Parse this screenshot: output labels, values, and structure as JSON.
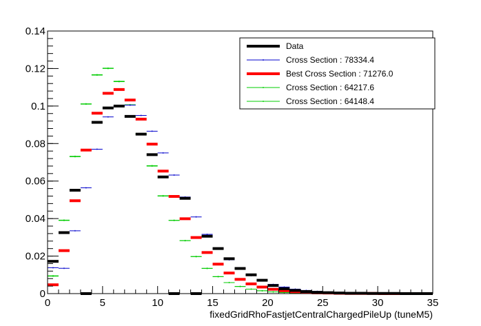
{
  "chart_data": {
    "type": "line",
    "style": "histogram-step",
    "title": "",
    "xlabel": "fixedGridRhoFastjetCentralChargedPileUp (tuneM5)",
    "ylabel": "",
    "xlim": [
      0,
      35
    ],
    "ylim": [
      0,
      0.14
    ],
    "x_ticks": [
      0,
      5,
      10,
      15,
      20,
      25,
      30,
      35
    ],
    "y_ticks": [
      0,
      0.02,
      0.04,
      0.06,
      0.08,
      0.1,
      0.12,
      0.14
    ],
    "x_tick_labels": [
      "0",
      "5",
      "10",
      "15",
      "20",
      "25",
      "30",
      "35"
    ],
    "y_tick_labels": [
      "0",
      "0.02",
      "0.04",
      "0.06",
      "0.08",
      "0.1",
      "0.12",
      "0.14"
    ],
    "grid": false,
    "legend_position": "top-right",
    "bin_width": 1,
    "series": [
      {
        "name": "Data",
        "color": "#000000",
        "line_width": 4,
        "x": [
          0,
          1,
          2,
          3,
          4,
          5,
          6,
          7,
          8,
          9,
          10,
          11,
          12,
          13,
          14,
          15,
          16,
          17,
          18,
          19,
          20,
          21,
          22,
          23,
          24,
          25,
          26,
          27,
          28,
          29,
          30,
          31,
          32,
          33,
          34
        ],
        "values": [
          0.0172,
          0.0325,
          0.0551,
          0,
          0.0913,
          0.099,
          0.1,
          0.0945,
          0.085,
          0.0741,
          0.0622,
          0,
          0.0508,
          0,
          0.0306,
          0.024,
          0.0186,
          0.0134,
          0.01,
          0.0071,
          0.0043,
          0.0026,
          0.0017,
          0.0011,
          0.0007,
          0.0005,
          0.0003,
          0.0002,
          0.0002,
          0.0001,
          0.0001,
          0.0001,
          0,
          0,
          0
        ]
      },
      {
        "name": "Cross Section : 78334.4",
        "color": "#0000cc",
        "line_width": 1,
        "x": [
          0,
          1,
          2,
          3,
          4,
          5,
          6,
          7,
          8,
          9,
          10,
          11,
          12,
          13,
          14,
          15,
          16,
          17,
          18,
          19,
          20,
          21,
          22,
          23,
          24,
          25,
          26,
          27,
          28,
          29,
          30,
          31,
          32,
          33,
          34
        ],
        "values": [
          0.0138,
          0.0135,
          0.0335,
          0.0564,
          0.077,
          0.0942,
          0.1,
          0.1005,
          0.095,
          0.0866,
          0.075,
          0.0632,
          0.0515,
          0.0409,
          0.0316,
          0.024,
          0.018,
          0.0133,
          0.0096,
          0.0069,
          0.0049,
          0.0035,
          0.0024,
          0.0017,
          0.0012,
          0.0008,
          0.0006,
          0.0004,
          0.0003,
          0.0002,
          0.0001,
          0.0001,
          0.0001,
          0.0001,
          0
        ]
      },
      {
        "name": "Best Cross Section : 71276.0",
        "color": "#ff0000",
        "line_width": 4,
        "x": [
          0,
          1,
          2,
          3,
          4,
          5,
          6,
          7,
          8,
          9,
          10,
          11,
          12,
          13,
          14,
          15,
          16,
          17,
          18,
          19,
          20,
          21,
          22,
          23,
          24,
          25,
          26,
          27,
          28,
          29,
          30,
          31,
          32,
          33,
          34
        ],
        "values": [
          0.0047,
          0.0229,
          0.0495,
          0.0765,
          0.0962,
          0.1068,
          0.1088,
          0.1032,
          0.093,
          0.0797,
          0.0653,
          0.0518,
          0.0399,
          0.0299,
          0.0219,
          0.0157,
          0.011,
          0.0076,
          0.0052,
          0.0035,
          0.0023,
          0.0015,
          0.001,
          0.0006,
          0.0004,
          0.0003,
          0.0002,
          0.0001,
          0.0001,
          0.0001,
          0,
          0,
          0,
          0,
          0
        ]
      },
      {
        "name": "Cross Section : 64217.6",
        "color": "#00cc00",
        "line_width": 1,
        "x": [
          0,
          1,
          2,
          3,
          4,
          5,
          6,
          7,
          8,
          9,
          10,
          11,
          12,
          13,
          14,
          15,
          16,
          17,
          18,
          19,
          20,
          21,
          22,
          23,
          24,
          25,
          26,
          27,
          28,
          29,
          30,
          31,
          32,
          33,
          34
        ],
        "values": [
          0.0093,
          0.039,
          0.073,
          0.101,
          0.1165,
          0.12,
          0.113,
          0.1005,
          0.085,
          0.068,
          0.052,
          0.039,
          0.0282,
          0.0197,
          0.0134,
          0.009,
          0.0059,
          0.0038,
          0.0024,
          0.0015,
          0.0009,
          0.0006,
          0.0004,
          0.0002,
          0.0001,
          0.0001,
          0.0001,
          0,
          0,
          0,
          0,
          0,
          0,
          0,
          0
        ]
      },
      {
        "name": "Cross Section : 64148.4",
        "color": "#00cc00",
        "line_width": 1,
        "x": [
          0,
          1,
          2,
          3,
          4,
          5,
          6,
          7,
          8,
          9,
          10,
          11,
          12,
          13,
          14,
          15,
          16,
          17,
          18,
          19,
          20,
          21,
          22,
          23,
          24,
          25,
          26,
          27,
          28,
          29,
          30,
          31,
          32,
          33,
          34
        ],
        "values": [
          0.0095,
          0.0392,
          0.0732,
          0.1012,
          0.1167,
          0.1202,
          0.1132,
          0.1007,
          0.0852,
          0.0682,
          0.0522,
          0.0391,
          0.0283,
          0.0198,
          0.0135,
          0.0091,
          0.0059,
          0.0038,
          0.0024,
          0.0015,
          0.0009,
          0.0006,
          0.0004,
          0.0002,
          0.0001,
          0.0001,
          0.0001,
          0,
          0,
          0,
          0,
          0,
          0,
          0,
          0
        ]
      }
    ]
  }
}
